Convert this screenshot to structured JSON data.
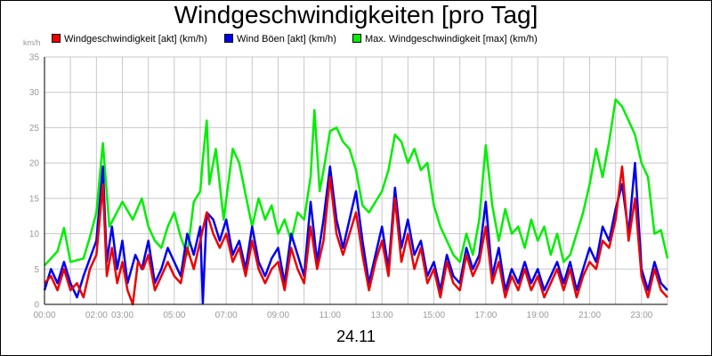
{
  "chart_data": {
    "type": "line",
    "title": "Windgeschwindigkeiten [pro Tag]",
    "unit_label": "km/h",
    "xlabel": "24.11",
    "ylim": [
      0,
      35
    ],
    "y_ticks": [
      "0",
      "5",
      "10",
      "15",
      "20",
      "25",
      "30",
      "35"
    ],
    "x_range_hours": [
      0,
      24
    ],
    "x_ticks": [
      {
        "h": 0,
        "label": "00:00"
      },
      {
        "h": 2,
        "label": "02:00"
      },
      {
        "h": 3,
        "label": "03:00"
      },
      {
        "h": 5,
        "label": "05:00"
      },
      {
        "h": 7,
        "label": "07:00"
      },
      {
        "h": 9,
        "label": "09:00"
      },
      {
        "h": 11,
        "label": "11:00"
      },
      {
        "h": 13,
        "label": "13:00"
      },
      {
        "h": 15,
        "label": "15:00"
      },
      {
        "h": 17,
        "label": "17:00"
      },
      {
        "h": 19,
        "label": "19:00"
      },
      {
        "h": 21,
        "label": "21:00"
      },
      {
        "h": 23,
        "label": "23:00"
      }
    ],
    "grid": true,
    "legend_position": "top",
    "series": [
      {
        "name": "Max. Windgeschwindigkeit [max] (km/h)",
        "color": "#00ee00",
        "points": [
          [
            0,
            5.5
          ],
          [
            0.5,
            7.5
          ],
          [
            0.75,
            10.8
          ],
          [
            1,
            6
          ],
          [
            1.5,
            6.5
          ],
          [
            1.75,
            9.5
          ],
          [
            2,
            13
          ],
          [
            2.25,
            22.8
          ],
          [
            2.5,
            11
          ],
          [
            3,
            14.5
          ],
          [
            3.4,
            12
          ],
          [
            3.75,
            15
          ],
          [
            4,
            11
          ],
          [
            4.25,
            9
          ],
          [
            4.5,
            8
          ],
          [
            4.75,
            11
          ],
          [
            5,
            13
          ],
          [
            5.25,
            9.5
          ],
          [
            5.5,
            7
          ],
          [
            5.75,
            14.5
          ],
          [
            6,
            16
          ],
          [
            6.1,
            20.5
          ],
          [
            6.25,
            26
          ],
          [
            6.35,
            17
          ],
          [
            6.6,
            22
          ],
          [
            6.9,
            12
          ],
          [
            7.25,
            22
          ],
          [
            7.5,
            20
          ],
          [
            7.75,
            15.5
          ],
          [
            8,
            11
          ],
          [
            8.25,
            15
          ],
          [
            8.5,
            12
          ],
          [
            8.75,
            14
          ],
          [
            9,
            10
          ],
          [
            9.25,
            12
          ],
          [
            9.5,
            9
          ],
          [
            9.75,
            13
          ],
          [
            10,
            12
          ],
          [
            10.25,
            18
          ],
          [
            10.4,
            27.5
          ],
          [
            10.6,
            16
          ],
          [
            10.8,
            20
          ],
          [
            11,
            24.5
          ],
          [
            11.25,
            25
          ],
          [
            11.5,
            23
          ],
          [
            11.75,
            22
          ],
          [
            12,
            19
          ],
          [
            12.25,
            14
          ],
          [
            12.5,
            13
          ],
          [
            12.75,
            14.5
          ],
          [
            13,
            16
          ],
          [
            13.25,
            19
          ],
          [
            13.5,
            24
          ],
          [
            13.75,
            23
          ],
          [
            14,
            20
          ],
          [
            14.25,
            22
          ],
          [
            14.5,
            19
          ],
          [
            14.75,
            20
          ],
          [
            15,
            14
          ],
          [
            15.25,
            11
          ],
          [
            15.5,
            9
          ],
          [
            15.75,
            7
          ],
          [
            16,
            6
          ],
          [
            16.25,
            10
          ],
          [
            16.5,
            7
          ],
          [
            16.75,
            12
          ],
          [
            17,
            22.5
          ],
          [
            17.25,
            14
          ],
          [
            17.5,
            9
          ],
          [
            17.75,
            13.5
          ],
          [
            18,
            10
          ],
          [
            18.25,
            11
          ],
          [
            18.5,
            8
          ],
          [
            18.75,
            12
          ],
          [
            19,
            9
          ],
          [
            19.25,
            11
          ],
          [
            19.5,
            7
          ],
          [
            19.75,
            10
          ],
          [
            20,
            6
          ],
          [
            20.25,
            7
          ],
          [
            20.5,
            10
          ],
          [
            20.75,
            13
          ],
          [
            21,
            17
          ],
          [
            21.25,
            22
          ],
          [
            21.5,
            18
          ],
          [
            21.75,
            23
          ],
          [
            22,
            29
          ],
          [
            22.25,
            28
          ],
          [
            22.5,
            26
          ],
          [
            22.75,
            24
          ],
          [
            23,
            20
          ],
          [
            23.25,
            18
          ],
          [
            23.5,
            10
          ],
          [
            23.75,
            10.5
          ],
          [
            24,
            6.5
          ]
        ]
      },
      {
        "name": "Wind Böen [akt] (km/h)",
        "color": "#0000ee",
        "points": [
          [
            0,
            2
          ],
          [
            0.25,
            5
          ],
          [
            0.5,
            3
          ],
          [
            0.75,
            6
          ],
          [
            1,
            3
          ],
          [
            1.25,
            1
          ],
          [
            1.5,
            4
          ],
          [
            1.75,
            6.5
          ],
          [
            2,
            9
          ],
          [
            2.25,
            19.5
          ],
          [
            2.4,
            6
          ],
          [
            2.6,
            11
          ],
          [
            2.8,
            5
          ],
          [
            3,
            9
          ],
          [
            3.2,
            3
          ],
          [
            3.5,
            7
          ],
          [
            3.75,
            5
          ],
          [
            4,
            9
          ],
          [
            4.25,
            3
          ],
          [
            4.5,
            5
          ],
          [
            4.75,
            8
          ],
          [
            5,
            6
          ],
          [
            5.25,
            4
          ],
          [
            5.5,
            10
          ],
          [
            5.75,
            7
          ],
          [
            6,
            11
          ],
          [
            6.1,
            0.2
          ],
          [
            6.25,
            13
          ],
          [
            6.5,
            12
          ],
          [
            6.75,
            9
          ],
          [
            7,
            12
          ],
          [
            7.25,
            7
          ],
          [
            7.5,
            9
          ],
          [
            7.75,
            5
          ],
          [
            8,
            11
          ],
          [
            8.25,
            6
          ],
          [
            8.5,
            4
          ],
          [
            8.75,
            6.5
          ],
          [
            9,
            8
          ],
          [
            9.25,
            3
          ],
          [
            9.5,
            10
          ],
          [
            9.75,
            7
          ],
          [
            10,
            4
          ],
          [
            10.25,
            14.5
          ],
          [
            10.5,
            6
          ],
          [
            10.75,
            12
          ],
          [
            11,
            19.5
          ],
          [
            11.25,
            12
          ],
          [
            11.5,
            8
          ],
          [
            11.75,
            12
          ],
          [
            12,
            16
          ],
          [
            12.25,
            9
          ],
          [
            12.5,
            3
          ],
          [
            12.75,
            7
          ],
          [
            13,
            11
          ],
          [
            13.25,
            5
          ],
          [
            13.5,
            16.5
          ],
          [
            13.75,
            8
          ],
          [
            14,
            12
          ],
          [
            14.25,
            7
          ],
          [
            14.5,
            9
          ],
          [
            14.75,
            4
          ],
          [
            15,
            6
          ],
          [
            15.25,
            2
          ],
          [
            15.5,
            7
          ],
          [
            15.75,
            4
          ],
          [
            16,
            3
          ],
          [
            16.25,
            8
          ],
          [
            16.5,
            5
          ],
          [
            16.75,
            7
          ],
          [
            17,
            14.5
          ],
          [
            17.25,
            4
          ],
          [
            17.5,
            8
          ],
          [
            17.75,
            2
          ],
          [
            18,
            5
          ],
          [
            18.25,
            3
          ],
          [
            18.5,
            6
          ],
          [
            18.75,
            3
          ],
          [
            19,
            5
          ],
          [
            19.25,
            2
          ],
          [
            19.5,
            4
          ],
          [
            19.75,
            6
          ],
          [
            20,
            3
          ],
          [
            20.25,
            6
          ],
          [
            20.5,
            2
          ],
          [
            20.75,
            5
          ],
          [
            21,
            8
          ],
          [
            21.25,
            6
          ],
          [
            21.5,
            11
          ],
          [
            21.75,
            9
          ],
          [
            22,
            13.5
          ],
          [
            22.25,
            17
          ],
          [
            22.5,
            10
          ],
          [
            22.75,
            20
          ],
          [
            23,
            5
          ],
          [
            23.25,
            2
          ],
          [
            23.5,
            6
          ],
          [
            23.75,
            3
          ],
          [
            24,
            2
          ]
        ]
      },
      {
        "name": "Windgeschwindigkeit [akt] (km/h)",
        "color": "#ee0000",
        "points": [
          [
            0,
            3
          ],
          [
            0.25,
            4
          ],
          [
            0.5,
            2
          ],
          [
            0.75,
            5
          ],
          [
            1,
            2
          ],
          [
            1.25,
            3
          ],
          [
            1.5,
            1
          ],
          [
            1.75,
            5
          ],
          [
            2,
            7
          ],
          [
            2.25,
            17
          ],
          [
            2.4,
            4
          ],
          [
            2.6,
            8
          ],
          [
            2.8,
            3
          ],
          [
            3,
            6
          ],
          [
            3.2,
            2
          ],
          [
            3.4,
            0
          ],
          [
            3.6,
            6
          ],
          [
            3.8,
            5
          ],
          [
            4,
            7
          ],
          [
            4.25,
            2
          ],
          [
            4.5,
            4
          ],
          [
            4.75,
            6
          ],
          [
            5,
            4
          ],
          [
            5.25,
            3
          ],
          [
            5.5,
            8
          ],
          [
            5.75,
            5
          ],
          [
            6,
            9
          ],
          [
            6.25,
            13
          ],
          [
            6.5,
            10
          ],
          [
            6.75,
            8
          ],
          [
            7,
            10
          ],
          [
            7.25,
            6
          ],
          [
            7.5,
            8
          ],
          [
            7.75,
            4
          ],
          [
            8,
            9
          ],
          [
            8.25,
            5
          ],
          [
            8.5,
            3
          ],
          [
            8.75,
            5
          ],
          [
            9,
            6
          ],
          [
            9.25,
            2
          ],
          [
            9.5,
            8
          ],
          [
            9.75,
            5
          ],
          [
            10,
            3
          ],
          [
            10.25,
            11
          ],
          [
            10.5,
            5
          ],
          [
            10.75,
            9
          ],
          [
            11,
            18
          ],
          [
            11.25,
            10
          ],
          [
            11.5,
            7
          ],
          [
            11.75,
            10
          ],
          [
            12,
            13
          ],
          [
            12.25,
            7
          ],
          [
            12.5,
            2
          ],
          [
            12.75,
            6
          ],
          [
            13,
            9
          ],
          [
            13.25,
            4
          ],
          [
            13.5,
            15
          ],
          [
            13.75,
            6
          ],
          [
            14,
            10
          ],
          [
            14.25,
            5
          ],
          [
            14.5,
            8
          ],
          [
            14.75,
            3
          ],
          [
            15,
            5
          ],
          [
            15.25,
            1
          ],
          [
            15.5,
            6
          ],
          [
            15.75,
            3
          ],
          [
            16,
            2
          ],
          [
            16.25,
            7
          ],
          [
            16.5,
            4
          ],
          [
            16.75,
            6
          ],
          [
            17,
            11
          ],
          [
            17.25,
            3
          ],
          [
            17.5,
            6
          ],
          [
            17.75,
            1
          ],
          [
            18,
            4
          ],
          [
            18.25,
            2
          ],
          [
            18.5,
            5
          ],
          [
            18.75,
            2
          ],
          [
            19,
            4
          ],
          [
            19.25,
            1
          ],
          [
            19.5,
            3
          ],
          [
            19.75,
            5
          ],
          [
            20,
            2
          ],
          [
            20.25,
            5
          ],
          [
            20.5,
            1
          ],
          [
            20.75,
            4
          ],
          [
            21,
            6
          ],
          [
            21.25,
            5
          ],
          [
            21.5,
            9
          ],
          [
            21.75,
            8
          ],
          [
            22,
            12
          ],
          [
            22.25,
            19.5
          ],
          [
            22.5,
            9
          ],
          [
            22.75,
            15
          ],
          [
            23,
            4
          ],
          [
            23.25,
            1
          ],
          [
            23.5,
            5
          ],
          [
            23.75,
            2
          ],
          [
            24,
            1
          ]
        ]
      }
    ]
  },
  "legend": [
    {
      "label": "Windgeschwindigkeit [akt] (km/h)",
      "color": "#ee0000"
    },
    {
      "label": "Wind Böen [akt] (km/h)",
      "color": "#0000ee"
    },
    {
      "label": "Max. Windgeschwindigkeit [max] (km/h)",
      "color": "#00ee00"
    }
  ]
}
